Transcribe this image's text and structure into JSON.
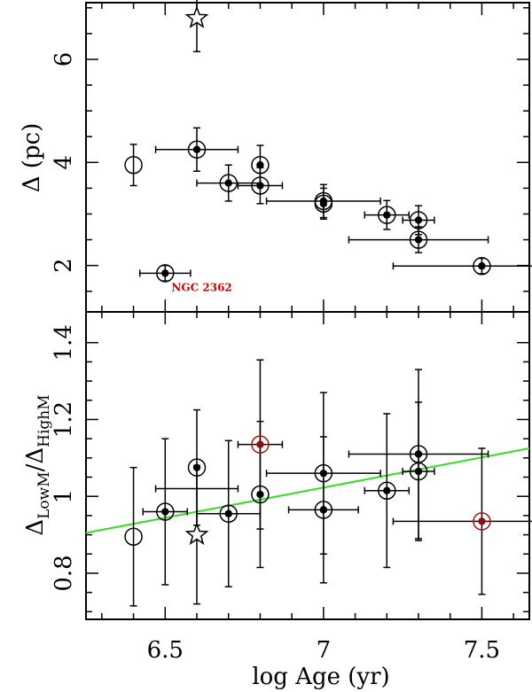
{
  "chart_data": [
    {
      "panel": "top",
      "type": "scatter",
      "xlabel": "log Age (yr)",
      "ylabel": "Δ (pc)",
      "xlim": [
        6.25,
        7.65
      ],
      "ylim": [
        1.1,
        7.1
      ],
      "yticks": [
        2,
        4,
        6
      ],
      "points": [
        {
          "x": 6.4,
          "y": 3.95,
          "xerr": 0.0,
          "yerr": 0.4,
          "marker": "open",
          "color": "#000000"
        },
        {
          "x": 6.5,
          "y": 1.85,
          "xerr": 0.08,
          "yerr": 0.15,
          "marker": "both",
          "color": "#000000"
        },
        {
          "x": 6.6,
          "y": 4.25,
          "xerr": 0.13,
          "yerr": 0.42,
          "marker": "both",
          "color": "#000000"
        },
        {
          "x": 6.6,
          "y": 6.8,
          "xerr": 0.0,
          "yerr": 0.65,
          "marker": "star",
          "color": "#000000"
        },
        {
          "x": 6.7,
          "y": 3.6,
          "xerr": 0.1,
          "yerr": 0.35,
          "marker": "both",
          "color": "#000000"
        },
        {
          "x": 6.8,
          "y": 3.95,
          "xerr": 0.0,
          "yerr": 0.38,
          "marker": "both",
          "color": "#000000"
        },
        {
          "x": 6.8,
          "y": 3.55,
          "xerr": 0.07,
          "yerr": 0.35,
          "marker": "both",
          "color": "#000000"
        },
        {
          "x": 7.0,
          "y": 3.25,
          "xerr": 0.18,
          "yerr": 0.32,
          "marker": "both",
          "color": "#000000"
        },
        {
          "x": 7.0,
          "y": 3.2,
          "xerr": 0.0,
          "yerr": 0.3,
          "marker": "both",
          "color": "#000000"
        },
        {
          "x": 7.2,
          "y": 2.98,
          "xerr": 0.07,
          "yerr": 0.28,
          "marker": "both",
          "color": "#000000"
        },
        {
          "x": 7.3,
          "y": 2.88,
          "xerr": 0.05,
          "yerr": 0.28,
          "marker": "both",
          "color": "#000000"
        },
        {
          "x": 7.3,
          "y": 2.5,
          "xerr": 0.22,
          "yerr": 0.25,
          "marker": "both",
          "color": "#000000"
        },
        {
          "x": 7.5,
          "y": 1.99,
          "xerr": 0.28,
          "yerr": 0.15,
          "marker": "both",
          "color": "#000000"
        }
      ],
      "annotations": [
        {
          "text": "NGC 2362",
          "x": 6.52,
          "y": 1.5,
          "color": "#cc0000"
        }
      ]
    },
    {
      "panel": "bottom",
      "type": "scatter",
      "xlabel": "log Age (yr)",
      "ylabel": "Δ LowM / Δ HighM",
      "ylabel_base": "Δ",
      "ylabel_sub1": "LowM",
      "ylabel_sub2": "HighM",
      "xlim": [
        6.25,
        7.65
      ],
      "ylim": [
        0.68,
        1.48
      ],
      "yticks": [
        0.8,
        1.0,
        1.2,
        1.4
      ],
      "ytick_labels": [
        "0.8",
        "1",
        "1.2",
        "1.4"
      ],
      "xticks": [
        6.5,
        7.0,
        7.5
      ],
      "xtick_labels": [
        "6.5",
        "7",
        "7.5"
      ],
      "points": [
        {
          "x": 6.4,
          "y": 0.895,
          "xerr": 0.0,
          "yerr": 0.18,
          "marker": "open",
          "color": "#000000"
        },
        {
          "x": 6.5,
          "y": 0.96,
          "xerr": 0.07,
          "yerr": 0.19,
          "marker": "both",
          "color": "#000000"
        },
        {
          "x": 6.6,
          "y": 1.075,
          "xerr": 0.0,
          "yerr": 0.15,
          "marker": "both",
          "color": "#000000"
        },
        {
          "x": 6.6,
          "y": 0.9,
          "xerr": 0.0,
          "yerr": 0.18,
          "marker": "star",
          "color": "#000000"
        },
        {
          "x": 6.6,
          "y": 1.02,
          "xerr": 0.13,
          "yerr": 0.0,
          "marker": "none",
          "color": "#000000"
        },
        {
          "x": 6.7,
          "y": 0.955,
          "xerr": 0.1,
          "yerr": 0.19,
          "marker": "both",
          "color": "#000000"
        },
        {
          "x": 6.8,
          "y": 1.005,
          "xerr": 0.0,
          "yerr": 0.19,
          "marker": "both",
          "color": "#000000"
        },
        {
          "x": 6.8,
          "y": 1.135,
          "xerr": 0.07,
          "yerr": 0.22,
          "marker": "both",
          "color": "#aa1111"
        },
        {
          "x": 7.0,
          "y": 1.06,
          "xerr": 0.18,
          "yerr": 0.21,
          "marker": "both",
          "color": "#000000"
        },
        {
          "x": 7.0,
          "y": 0.965,
          "xerr": 0.11,
          "yerr": 0.19,
          "marker": "both",
          "color": "#000000"
        },
        {
          "x": 7.2,
          "y": 1.015,
          "xerr": 0.07,
          "yerr": 0.2,
          "marker": "both",
          "color": "#000000"
        },
        {
          "x": 7.3,
          "y": 1.11,
          "xerr": 0.22,
          "yerr": 0.22,
          "marker": "both",
          "color": "#000000"
        },
        {
          "x": 7.3,
          "y": 1.065,
          "xerr": 0.05,
          "yerr": 0.18,
          "marker": "both",
          "color": "#000000"
        },
        {
          "x": 7.5,
          "y": 0.935,
          "xerr": 0.28,
          "yerr": 0.19,
          "marker": "both",
          "color": "#aa1111"
        }
      ],
      "fit_line": {
        "x": [
          6.25,
          7.65
        ],
        "y": [
          0.905,
          1.125
        ],
        "color": "#33dd22"
      }
    }
  ]
}
